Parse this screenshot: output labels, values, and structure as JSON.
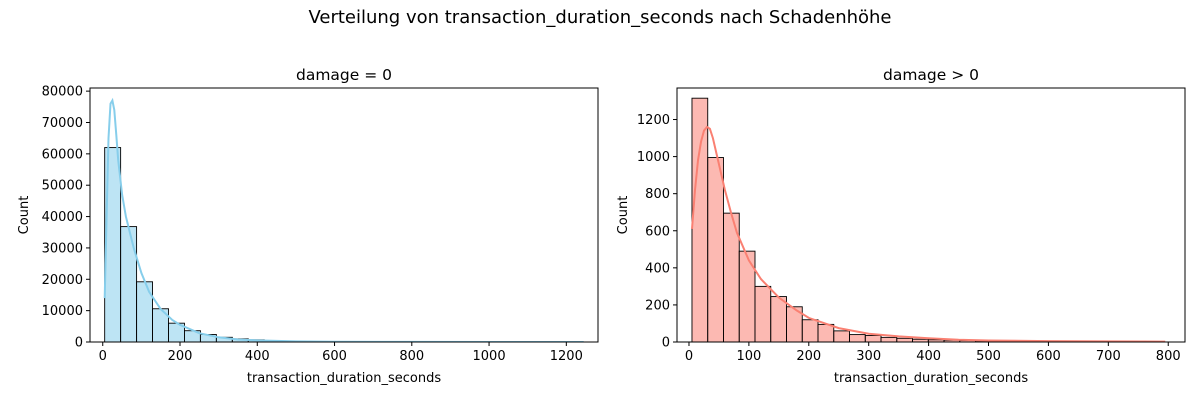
{
  "figure": {
    "suptitle": "Verteilung von transaction_duration_seconds nach Schadenhöhe"
  },
  "chart_data": [
    {
      "type": "bar",
      "subtype": "histogram-with-kde",
      "title": "damage = 0",
      "xlabel": "transaction_duration_seconds",
      "ylabel": "Count",
      "xlim": [
        -33,
        1282
      ],
      "ylim": [
        0,
        81000
      ],
      "xticks": [
        0,
        200,
        400,
        600,
        800,
        1000,
        1200
      ],
      "yticks": [
        0,
        10000,
        20000,
        30000,
        40000,
        50000,
        60000,
        70000,
        80000
      ],
      "bar_color": "#87CEEB",
      "kde_color": "#87CEEB",
      "bins": {
        "start": 5,
        "width": 41.3,
        "counts": [
          62000,
          36800,
          19200,
          10600,
          6000,
          3600,
          2400,
          1500,
          1000,
          700,
          450,
          300,
          200,
          150,
          110,
          90,
          70,
          55,
          45,
          35,
          30,
          25,
          20,
          18,
          15,
          12,
          10,
          8,
          6,
          5
        ]
      },
      "kde": {
        "x": [
          5,
          10,
          15,
          20,
          25,
          30,
          35,
          40,
          50,
          60,
          80,
          100,
          120,
          150,
          180,
          200,
          250,
          300,
          350,
          400,
          500,
          600,
          800,
          1000,
          1245
        ],
        "y": [
          14000,
          40000,
          65000,
          76000,
          77000,
          74000,
          66000,
          58000,
          47000,
          40000,
          30000,
          22000,
          16000,
          10500,
          7000,
          5500,
          2800,
          1500,
          800,
          500,
          200,
          100,
          30,
          10,
          0
        ]
      }
    },
    {
      "type": "bar",
      "subtype": "histogram-with-kde",
      "title": "damage > 0",
      "xlabel": "transaction_duration_seconds",
      "ylabel": "Count",
      "xlim": [
        -20,
        828
      ],
      "ylim": [
        0,
        1370
      ],
      "xticks": [
        0,
        100,
        200,
        300,
        400,
        500,
        600,
        700,
        800
      ],
      "yticks": [
        0,
        200,
        400,
        600,
        800,
        1000,
        1200
      ],
      "bar_color": "#FA8072",
      "kde_color": "#FA8072",
      "bins": {
        "start": 5,
        "width": 26.3,
        "counts": [
          1315,
          995,
          695,
          490,
          300,
          245,
          190,
          120,
          95,
          60,
          40,
          35,
          25,
          20,
          15,
          12,
          10,
          8,
          6,
          5,
          4,
          3,
          2,
          2,
          1,
          1,
          1,
          1,
          1,
          1
        ]
      },
      "kde": {
        "x": [
          5,
          10,
          15,
          20,
          25,
          30,
          35,
          40,
          50,
          60,
          70,
          80,
          100,
          120,
          150,
          180,
          200,
          250,
          300,
          350,
          400,
          450,
          500,
          600,
          700,
          795
        ],
        "y": [
          610,
          820,
          980,
          1080,
          1140,
          1160,
          1150,
          1100,
          960,
          820,
          700,
          590,
          440,
          340,
          240,
          170,
          130,
          75,
          45,
          30,
          20,
          12,
          8,
          5,
          3,
          2
        ]
      }
    }
  ]
}
